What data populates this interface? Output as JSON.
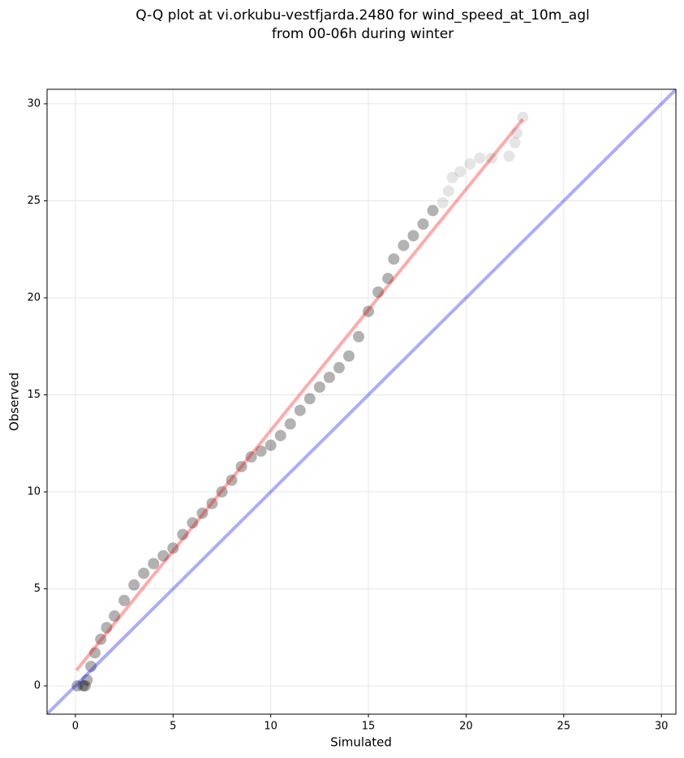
{
  "chart_data": {
    "type": "scatter",
    "title": [
      "Q-Q plot at vi.orkubu-vestfjarda.2480 for wind_speed_at_10m_agl",
      "from 00-06h during winter"
    ],
    "xlabel": "Simulated",
    "ylabel": "Observed",
    "xlim": [
      -1.45,
      30.74
    ],
    "ylim": [
      -1.46,
      30.75
    ],
    "xticks": [
      0,
      5,
      10,
      15,
      20,
      25,
      30
    ],
    "yticks": [
      0,
      5,
      10,
      15,
      20,
      25,
      30
    ],
    "grid": true,
    "series": [
      {
        "kind": "points",
        "color": "#000000",
        "x": [
          0.1,
          0.4,
          0.5,
          0.6,
          0.8,
          1.0,
          1.3,
          1.6,
          2.0,
          2.5,
          3.0,
          3.5,
          4.0,
          4.5,
          5.0,
          5.5,
          6.0,
          6.5,
          7.0,
          7.5,
          8.0,
          8.5,
          9.0,
          9.5,
          10.0,
          10.5,
          11.0,
          11.5,
          12.0,
          12.5,
          13.0,
          13.5,
          14.0,
          14.5,
          15.0,
          15.5,
          16.0,
          16.3,
          16.8,
          17.3,
          17.8,
          18.3,
          18.8,
          19.1,
          19.3,
          19.7,
          20.2,
          20.7,
          21.3,
          22.2,
          22.5,
          22.6,
          22.9
        ],
        "values": [
          0,
          0,
          0,
          0.3,
          1.0,
          1.7,
          2.4,
          3.0,
          3.6,
          4.4,
          5.2,
          5.8,
          6.3,
          6.7,
          7.1,
          7.8,
          8.4,
          8.9,
          9.4,
          10.0,
          10.6,
          11.3,
          11.8,
          12.1,
          12.4,
          12.9,
          13.5,
          14.2,
          14.8,
          15.4,
          15.9,
          16.4,
          17.0,
          18.0,
          19.3,
          20.3,
          21.0,
          22.0,
          22.7,
          23.2,
          23.8,
          24.5,
          24.9,
          25.5,
          26.2,
          26.5,
          26.9,
          27.2,
          27.2,
          27.3,
          28.0,
          28.5,
          29.3
        ]
      },
      {
        "kind": "line",
        "color": "#ff0000",
        "x": [
          0.05,
          22.9
        ],
        "values": [
          0.8,
          29.2
        ]
      },
      {
        "kind": "line",
        "color": "#0000ff",
        "x": [
          -1.45,
          30.74
        ],
        "values": [
          -1.45,
          30.74
        ]
      }
    ]
  }
}
